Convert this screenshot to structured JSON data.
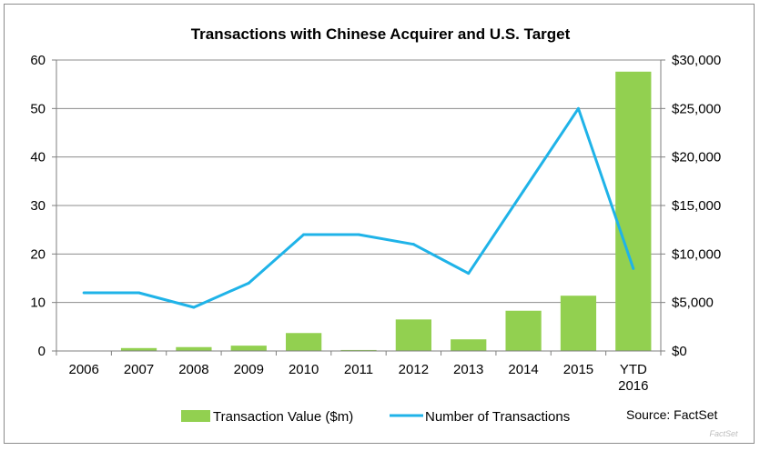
{
  "chart_data": {
    "type": "bar",
    "title": "Transactions with Chinese Acquirer and U.S. Target",
    "categories": [
      "2006",
      "2007",
      "2008",
      "2009",
      "2010",
      "2011",
      "2012",
      "2013",
      "2014",
      "2015",
      "YTD 2016"
    ],
    "series": [
      {
        "name": "Transaction Value ($m)",
        "type": "bar",
        "axis": "right",
        "color": "#92d050",
        "values": [
          0,
          300,
          400,
          550,
          1850,
          100,
          3250,
          1200,
          4150,
          5700,
          28800
        ]
      },
      {
        "name": "Number of Transactions",
        "type": "line",
        "axis": "left",
        "color": "#1fb3e8",
        "values": [
          12,
          12,
          9,
          14,
          24,
          24,
          22,
          16,
          33,
          50,
          17
        ]
      }
    ],
    "y_left": {
      "lim": [
        0,
        60
      ],
      "ticks": [
        "0",
        "10",
        "20",
        "30",
        "40",
        "50",
        "60"
      ]
    },
    "y_right": {
      "lim": [
        0,
        30000
      ],
      "ticks": [
        "$0",
        "$5,000",
        "$10,000",
        "$15,000",
        "$20,000",
        "$25,000",
        "$30,000"
      ]
    },
    "grid": true,
    "legend_position": "bottom",
    "source": "Source: FactSet"
  },
  "watermark": "FactSet"
}
